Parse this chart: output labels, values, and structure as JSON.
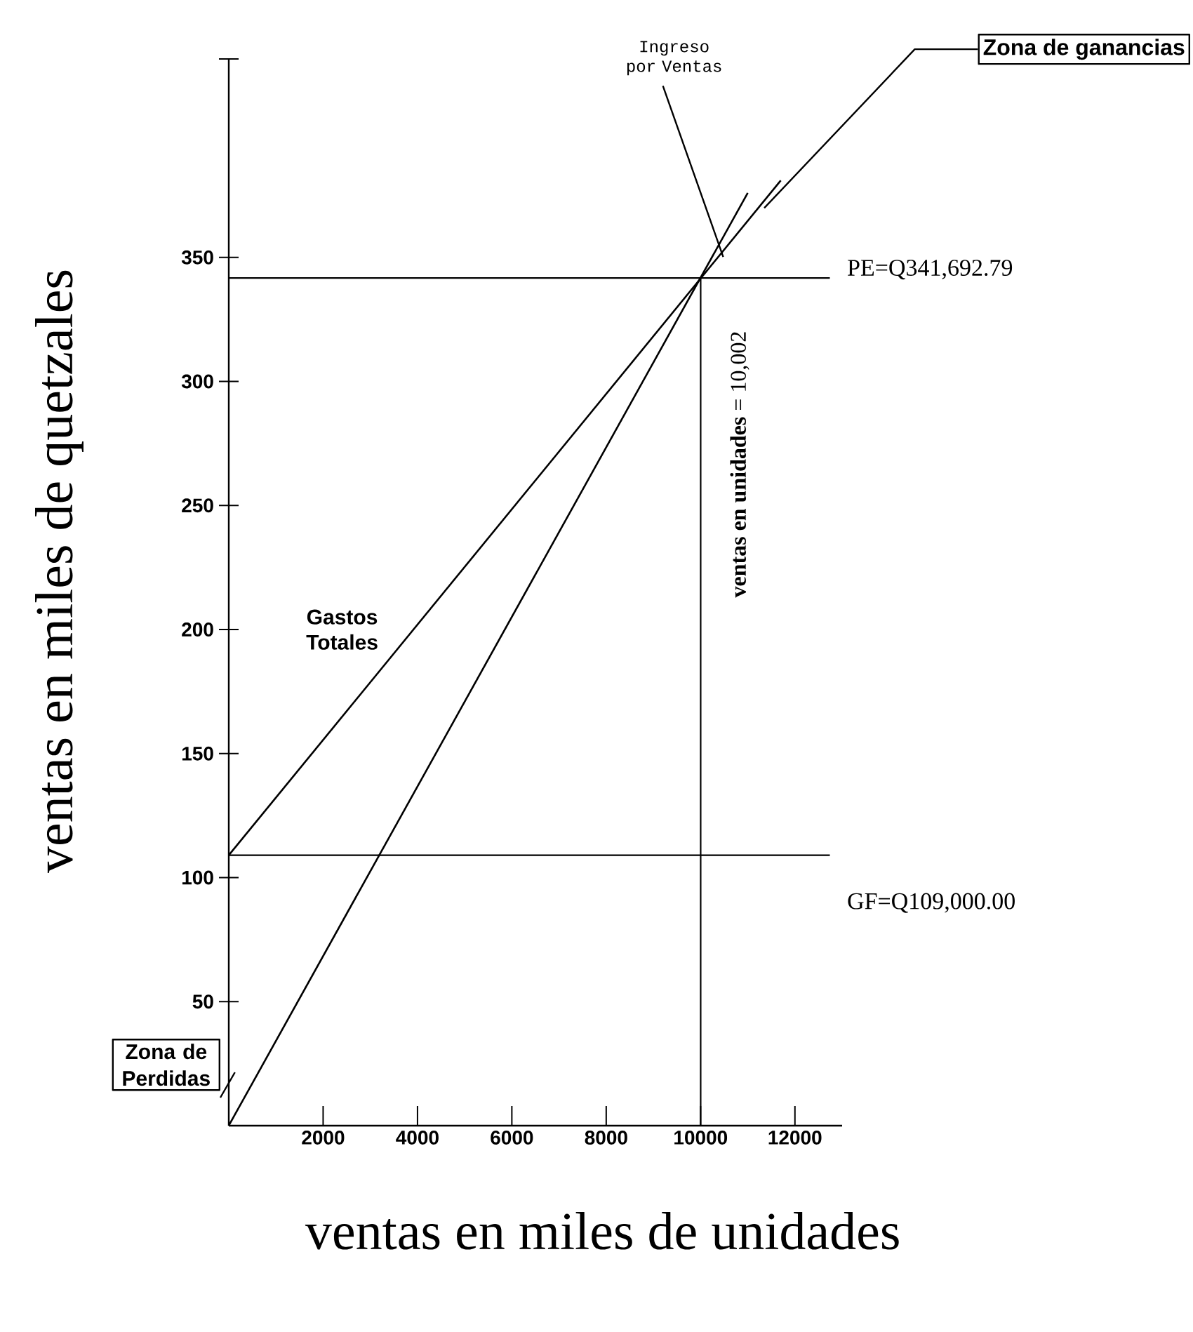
{
  "chart_data": {
    "type": "line",
    "xlabel": "ventas en miles de unidades",
    "ylabel": "ventas en miles de quetzales",
    "series": [
      {
        "name": "Gastos Totales",
        "color": "#000000",
        "x": [
          0,
          11700
        ],
        "values": [
          109,
          381
        ]
      },
      {
        "name": "Ingreso por Ventas",
        "color": "#000000",
        "x": [
          0,
          11000
        ],
        "values": [
          0,
          376
        ]
      }
    ],
    "ref_lines": [
      {
        "axis": "y",
        "value": 341.69,
        "label": "PE=Q341,692.79"
      },
      {
        "axis": "y",
        "value": 109,
        "label": "GF=Q109,000.00"
      },
      {
        "axis": "x",
        "value": 10002,
        "label": "**ventas en unidades** = 10,002"
      }
    ],
    "annotations": [
      "Zona de ganancias",
      "Zona de Perdidas"
    ],
    "xlim": [
      0,
      13000
    ],
    "ylim": [
      0,
      430
    ],
    "xticks": [
      2000,
      4000,
      6000,
      8000,
      10000,
      12000
    ],
    "yticks": [
      50,
      100,
      150,
      200,
      250,
      300,
      350,
      {
        "value": 430,
        "label": null
      }
    ],
    "grid": false,
    "marker": "none",
    "line_style": "solid"
  }
}
